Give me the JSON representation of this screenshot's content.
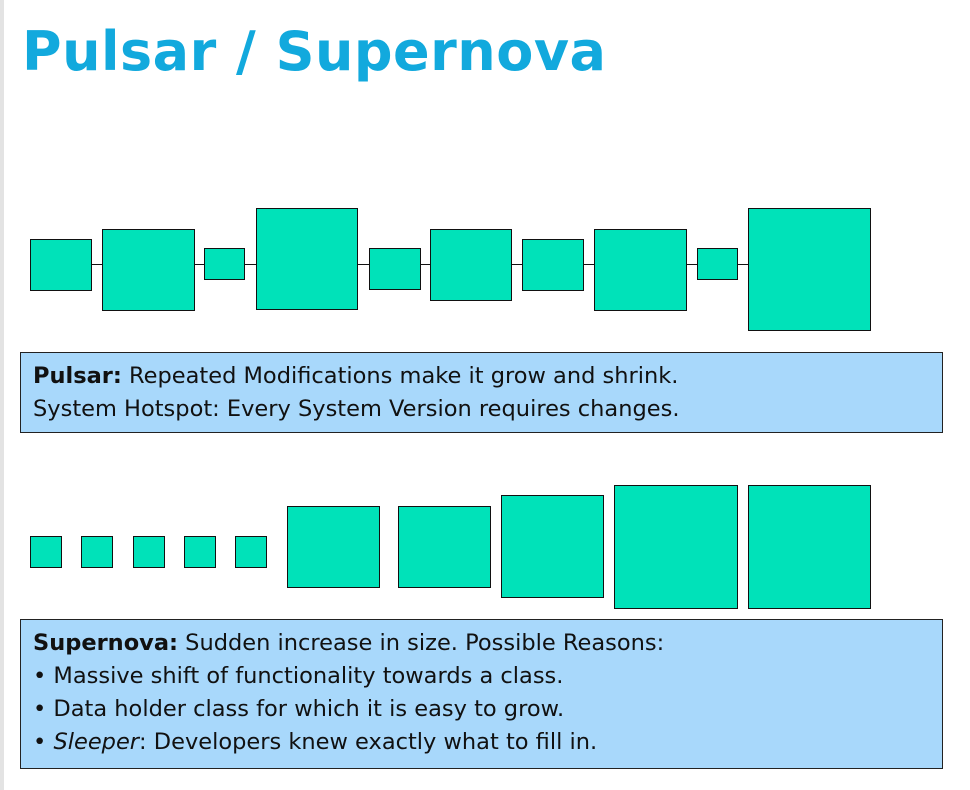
{
  "title": "Pulsar / Supernova",
  "colors": {
    "title": "#12a9dd",
    "box_fill": "#00e2b9",
    "caption_bg": "#a8d8fb"
  },
  "pulsar": {
    "label": "Pulsar:",
    "line1": " Repeated Modifications make it grow and shrink.",
    "line2": "System Hotspot: Every System Version requires changes."
  },
  "supernova": {
    "label": "Supernova:",
    "line1": " Sudden increase in size. Possible Reasons:",
    "bullet1": "• Massive shift of functionality towards a class.",
    "bullet2": "• Data holder class for which it is easy to grow.",
    "bullet3_prefix": "• ",
    "bullet3_italic": "Sleeper",
    "bullet3_rest": ": Developers knew exactly what to fill in."
  }
}
